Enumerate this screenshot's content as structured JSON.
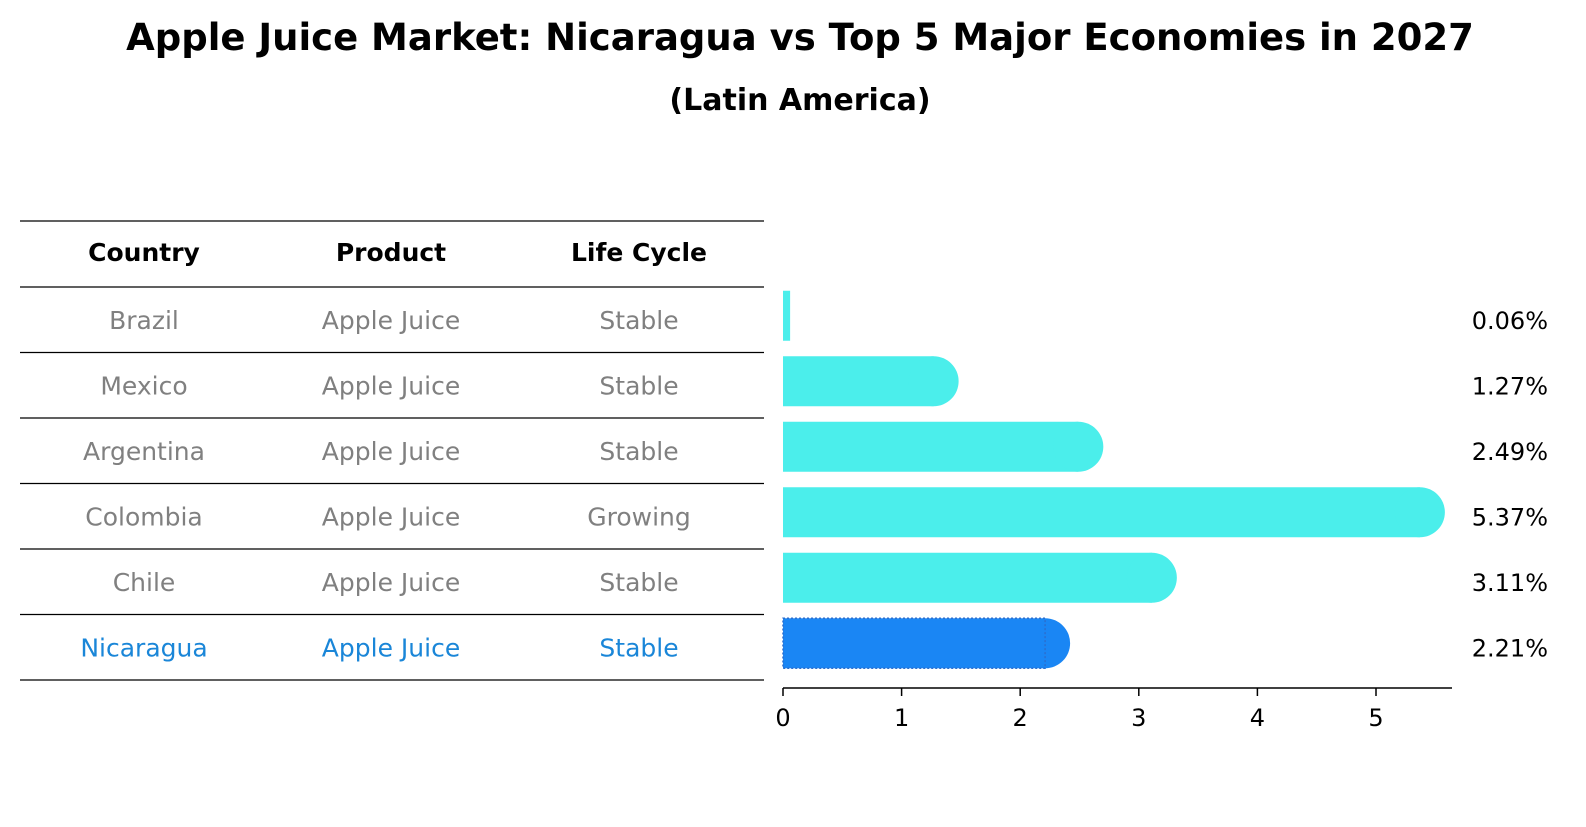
{
  "chart_data": {
    "type": "bar",
    "orientation": "horizontal",
    "title": "Apple Juice Market: Nicaragua vs Top 5 Major Economies in 2027",
    "subtitle": "(Latin America)",
    "table": {
      "headers": [
        "Country",
        "Product",
        "Life Cycle"
      ],
      "rows": [
        [
          "Brazil",
          "Apple Juice",
          "Stable"
        ],
        [
          "Mexico",
          "Apple Juice",
          "Stable"
        ],
        [
          "Argentina",
          "Apple Juice",
          "Stable"
        ],
        [
          "Colombia",
          "Apple Juice",
          "Growing"
        ],
        [
          "Chile",
          "Apple Juice",
          "Stable"
        ],
        [
          "Nicaragua",
          "Apple Juice",
          "Stable"
        ]
      ],
      "highlight_row": 5
    },
    "categories": [
      "Brazil",
      "Mexico",
      "Argentina",
      "Colombia",
      "Chile",
      "Nicaragua"
    ],
    "values": [
      0.06,
      1.27,
      2.49,
      5.37,
      3.11,
      2.21
    ],
    "value_labels": [
      "0.06%",
      "1.27%",
      "2.49%",
      "5.37%",
      "3.11%",
      "2.21%"
    ],
    "xlim": [
      0,
      5.6
    ],
    "xticks": [
      0,
      1,
      2,
      3,
      4,
      5
    ],
    "xtick_labels": [
      "0",
      "1",
      "2",
      "3",
      "4",
      "5"
    ],
    "grid": false,
    "colors": {
      "bar": "#4beeeb",
      "highlight_bar": "#1a86f4",
      "muted_text": "#808080",
      "highlight_text": "#1a86d8",
      "text": "#000000"
    }
  }
}
